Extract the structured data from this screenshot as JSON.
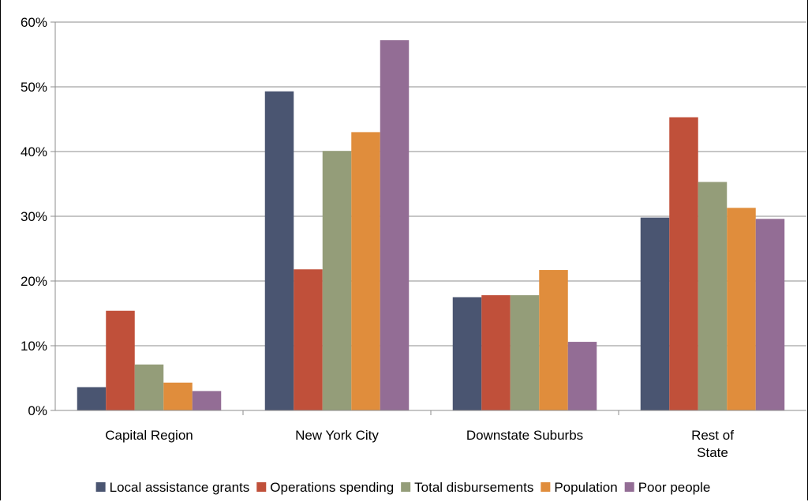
{
  "chart_data": {
    "type": "bar",
    "categories": [
      [
        "Capital Region"
      ],
      [
        "New York City"
      ],
      [
        "Downstate Suburbs"
      ],
      [
        "Rest of",
        "State"
      ]
    ],
    "y_ticks": [
      "0%",
      "10%",
      "20%",
      "30%",
      "40%",
      "50%",
      "60%"
    ],
    "ylim": [
      0,
      60
    ],
    "grid": true,
    "legend_position": "bottom",
    "series": [
      {
        "name": "Local assistance grants",
        "color": "#4a5571",
        "values": [
          3.6,
          49.3,
          17.5,
          29.8
        ]
      },
      {
        "name": "Operations spending",
        "color": "#c0503a",
        "values": [
          15.4,
          21.8,
          17.8,
          45.3
        ]
      },
      {
        "name": "Total disbursements",
        "color": "#949d79",
        "values": [
          7.1,
          40.1,
          17.8,
          35.3
        ]
      },
      {
        "name": "Population",
        "color": "#e08d3c",
        "values": [
          4.3,
          43.0,
          21.7,
          31.3
        ]
      },
      {
        "name": "Poor people",
        "color": "#936d95",
        "values": [
          3.0,
          57.2,
          10.6,
          29.6
        ]
      }
    ]
  }
}
